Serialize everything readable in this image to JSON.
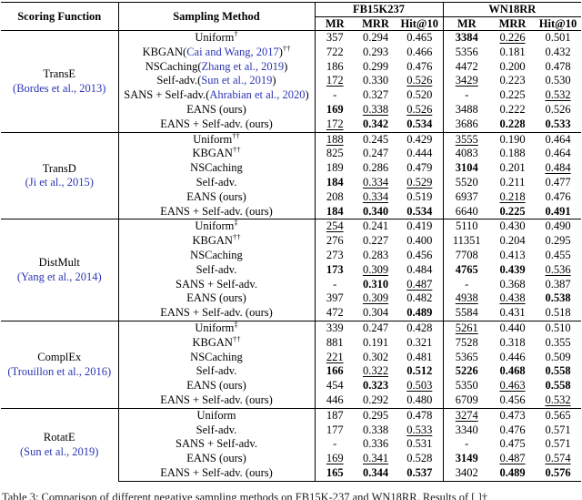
{
  "page": {
    "caption": "Table 3: Comparison of different negative sampling methods on FB15K-237 and WN18RR. Results of [ ]†"
  },
  "table": {
    "headers": {
      "scoring_function": "Scoring Function",
      "sampling_method": "Sampling Method",
      "group1": "FB15K237",
      "group2": "WN18RR",
      "metrics": [
        "MR",
        "MRR",
        "Hit@10"
      ]
    },
    "citation_color": "#2b35b4",
    "groups": [
      {
        "scoring": "TransE",
        "scoring_cite": "(Bordes et al., 2013)",
        "rows": [
          {
            "method": "Uniform",
            "sup": "†",
            "cells": [
              {
                "v": "357"
              },
              {
                "v": "0.294"
              },
              {
                "v": "0.465"
              },
              {
                "v": "3384",
                "s": "b"
              },
              {
                "v": "0.226",
                "s": "u"
              },
              {
                "v": "0.501"
              }
            ]
          },
          {
            "method": "KBGAN",
            "cite": "Cai and Wang, 2017",
            "sup": "††",
            "cells": [
              {
                "v": "722"
              },
              {
                "v": "0.293"
              },
              {
                "v": "0.466"
              },
              {
                "v": "5356"
              },
              {
                "v": "0.181"
              },
              {
                "v": "0.432"
              }
            ]
          },
          {
            "method": "NSCaching",
            "cite": "Zhang et al., 2019",
            "cells": [
              {
                "v": "186"
              },
              {
                "v": "0.299"
              },
              {
                "v": "0.476"
              },
              {
                "v": "4472"
              },
              {
                "v": "0.200"
              },
              {
                "v": "0.478"
              }
            ]
          },
          {
            "method": "Self-adv.",
            "cite": "Sun et al., 2019",
            "cells": [
              {
                "v": "172",
                "s": "u"
              },
              {
                "v": "0.330"
              },
              {
                "v": "0.526",
                "s": "u"
              },
              {
                "v": "3429",
                "s": "u"
              },
              {
                "v": "0.223"
              },
              {
                "v": "0.530"
              }
            ]
          },
          {
            "method": "SANS + Self-adv.",
            "cite": "Ahrabian et al., 2020",
            "cells": [
              {
                "v": "-"
              },
              {
                "v": "0.327"
              },
              {
                "v": "0.520"
              },
              {
                "v": "-"
              },
              {
                "v": "0.225"
              },
              {
                "v": "0.532",
                "s": "u"
              }
            ]
          },
          {
            "method": "EANS (ours)",
            "cells": [
              {
                "v": "169",
                "s": "b"
              },
              {
                "v": "0.338",
                "s": "u"
              },
              {
                "v": "0.526",
                "s": "u"
              },
              {
                "v": "3488"
              },
              {
                "v": "0.222"
              },
              {
                "v": "0.526"
              }
            ]
          },
          {
            "method": "EANS + Self-adv. (ours)",
            "cells": [
              {
                "v": "172",
                "s": "u"
              },
              {
                "v": "0.342",
                "s": "b"
              },
              {
                "v": "0.534",
                "s": "b"
              },
              {
                "v": "3686"
              },
              {
                "v": "0.228",
                "s": "b"
              },
              {
                "v": "0.533",
                "s": "b"
              }
            ]
          }
        ]
      },
      {
        "scoring": "TransD",
        "scoring_cite": "(Ji et al., 2015)",
        "rows": [
          {
            "method": "Uniform",
            "sup": "††",
            "cells": [
              {
                "v": "188",
                "s": "u"
              },
              {
                "v": "0.245"
              },
              {
                "v": "0.429"
              },
              {
                "v": "3555",
                "s": "u"
              },
              {
                "v": "0.190"
              },
              {
                "v": "0.464"
              }
            ]
          },
          {
            "method": "KBGAN",
            "sup": "††",
            "cells": [
              {
                "v": "825"
              },
              {
                "v": "0.247"
              },
              {
                "v": "0.444"
              },
              {
                "v": "4083"
              },
              {
                "v": "0.188"
              },
              {
                "v": "0.464"
              }
            ]
          },
          {
            "method": "NSCaching",
            "cells": [
              {
                "v": "189"
              },
              {
                "v": "0.286"
              },
              {
                "v": "0.479"
              },
              {
                "v": "3104",
                "s": "b"
              },
              {
                "v": "0.201"
              },
              {
                "v": "0.484",
                "s": "u"
              }
            ]
          },
          {
            "method": "Self-adv.",
            "cells": [
              {
                "v": "184",
                "s": "b"
              },
              {
                "v": "0.334",
                "s": "u"
              },
              {
                "v": "0.529",
                "s": "u"
              },
              {
                "v": "5520"
              },
              {
                "v": "0.211"
              },
              {
                "v": "0.477"
              }
            ]
          },
          {
            "method": "EANS (ours)",
            "cells": [
              {
                "v": "208"
              },
              {
                "v": "0.334",
                "s": "u"
              },
              {
                "v": "0.519"
              },
              {
                "v": "6937"
              },
              {
                "v": "0.218",
                "s": "u"
              },
              {
                "v": "0.476"
              }
            ]
          },
          {
            "method": "EANS + Self-adv. (ours)",
            "cells": [
              {
                "v": "184",
                "s": "b"
              },
              {
                "v": "0.340",
                "s": "b"
              },
              {
                "v": "0.534",
                "s": "b"
              },
              {
                "v": "6640"
              },
              {
                "v": "0.225",
                "s": "b"
              },
              {
                "v": "0.491",
                "s": "b"
              }
            ]
          }
        ]
      },
      {
        "scoring": "DistMult",
        "scoring_cite": "(Yang et al., 2014)",
        "rows": [
          {
            "method": "Uniform",
            "sup": "‡",
            "cells": [
              {
                "v": "254",
                "s": "u"
              },
              {
                "v": "0.241"
              },
              {
                "v": "0.419"
              },
              {
                "v": "5110"
              },
              {
                "v": "0.430"
              },
              {
                "v": "0.490"
              }
            ]
          },
          {
            "method": "KBGAN",
            "sup": "††",
            "cells": [
              {
                "v": "276"
              },
              {
                "v": "0.227"
              },
              {
                "v": "0.400"
              },
              {
                "v": "11351"
              },
              {
                "v": "0.204"
              },
              {
                "v": "0.295"
              }
            ]
          },
          {
            "method": "NSCaching",
            "cells": [
              {
                "v": "273"
              },
              {
                "v": "0.283"
              },
              {
                "v": "0.456"
              },
              {
                "v": "7708"
              },
              {
                "v": "0.413"
              },
              {
                "v": "0.455"
              }
            ]
          },
          {
            "method": "Self-adv.",
            "cells": [
              {
                "v": "173",
                "s": "b"
              },
              {
                "v": "0.309",
                "s": "u"
              },
              {
                "v": "0.484"
              },
              {
                "v": "4765",
                "s": "b"
              },
              {
                "v": "0.439",
                "s": "b"
              },
              {
                "v": "0.536",
                "s": "u"
              }
            ]
          },
          {
            "method": "SANS + Self-adv.",
            "cells": [
              {
                "v": "-"
              },
              {
                "v": "0.310",
                "s": "b"
              },
              {
                "v": "0.487",
                "s": "u"
              },
              {
                "v": "-"
              },
              {
                "v": "0.368"
              },
              {
                "v": "0.387"
              }
            ]
          },
          {
            "method": "EANS (ours)",
            "cells": [
              {
                "v": "397"
              },
              {
                "v": "0.309",
                "s": "u"
              },
              {
                "v": "0.482"
              },
              {
                "v": "4938",
                "s": "u"
              },
              {
                "v": "0.438",
                "s": "u"
              },
              {
                "v": "0.538",
                "s": "b"
              }
            ]
          },
          {
            "method": "EANS + Self-adv. (ours)",
            "cells": [
              {
                "v": "472"
              },
              {
                "v": "0.304"
              },
              {
                "v": "0.489",
                "s": "b"
              },
              {
                "v": "5584"
              },
              {
                "v": "0.431"
              },
              {
                "v": "0.518"
              }
            ]
          }
        ]
      },
      {
        "scoring": "ComplEx",
        "scoring_cite": "(Trouillon et al., 2016)",
        "rows": [
          {
            "method": "Uniform",
            "sup": "‡",
            "cells": [
              {
                "v": "339"
              },
              {
                "v": "0.247"
              },
              {
                "v": "0.428"
              },
              {
                "v": "5261",
                "s": "u"
              },
              {
                "v": "0.440"
              },
              {
                "v": "0.510"
              }
            ]
          },
          {
            "method": "KBGAN",
            "sup": "††",
            "cells": [
              {
                "v": "881"
              },
              {
                "v": "0.191"
              },
              {
                "v": "0.321"
              },
              {
                "v": "7528"
              },
              {
                "v": "0.318"
              },
              {
                "v": "0.355"
              }
            ]
          },
          {
            "method": "NSCaching",
            "cells": [
              {
                "v": "221",
                "s": "u"
              },
              {
                "v": "0.302"
              },
              {
                "v": "0.481"
              },
              {
                "v": "5365"
              },
              {
                "v": "0.446"
              },
              {
                "v": "0.509"
              }
            ]
          },
          {
            "method": "Self-adv.",
            "cells": [
              {
                "v": "166",
                "s": "b"
              },
              {
                "v": "0.322",
                "s": "u"
              },
              {
                "v": "0.512",
                "s": "b"
              },
              {
                "v": "5226",
                "s": "b"
              },
              {
                "v": "0.468",
                "s": "b"
              },
              {
                "v": "0.558",
                "s": "b"
              }
            ]
          },
          {
            "method": "EANS (ours)",
            "cells": [
              {
                "v": "454"
              },
              {
                "v": "0.323",
                "s": "b"
              },
              {
                "v": "0.503",
                "s": "u"
              },
              {
                "v": "5350"
              },
              {
                "v": "0.463",
                "s": "u"
              },
              {
                "v": "0.558",
                "s": "b"
              }
            ]
          },
          {
            "method": "EANS + Self-adv. (ours)",
            "cells": [
              {
                "v": "446"
              },
              {
                "v": "0.292"
              },
              {
                "v": "0.480"
              },
              {
                "v": "6709"
              },
              {
                "v": "0.456"
              },
              {
                "v": "0.532",
                "s": "u"
              }
            ]
          }
        ]
      },
      {
        "scoring": "RotatE",
        "scoring_cite": "(Sun et al., 2019)",
        "rows": [
          {
            "method": "Uniform",
            "cells": [
              {
                "v": "187"
              },
              {
                "v": "0.295"
              },
              {
                "v": "0.478"
              },
              {
                "v": "3274",
                "s": "u"
              },
              {
                "v": "0.473"
              },
              {
                "v": "0.565"
              }
            ]
          },
          {
            "method": "Self-adv.",
            "cells": [
              {
                "v": "177"
              },
              {
                "v": "0.338"
              },
              {
                "v": "0.533",
                "s": "u"
              },
              {
                "v": "3340"
              },
              {
                "v": "0.476"
              },
              {
                "v": "0.571"
              }
            ]
          },
          {
            "method": "SANS + Self-adv.",
            "cells": [
              {
                "v": "-"
              },
              {
                "v": "0.336"
              },
              {
                "v": "0.531"
              },
              {
                "v": "-"
              },
              {
                "v": "0.475"
              },
              {
                "v": "0.571"
              }
            ]
          },
          {
            "method": "EANS (ours)",
            "cells": [
              {
                "v": "169",
                "s": "u"
              },
              {
                "v": "0.341",
                "s": "u"
              },
              {
                "v": "0.528"
              },
              {
                "v": "3149",
                "s": "b"
              },
              {
                "v": "0.487",
                "s": "u"
              },
              {
                "v": "0.574",
                "s": "u"
              }
            ]
          },
          {
            "method": "EANS + Self-adv. (ours)",
            "cells": [
              {
                "v": "165",
                "s": "b"
              },
              {
                "v": "0.344",
                "s": "b"
              },
              {
                "v": "0.537",
                "s": "b"
              },
              {
                "v": "3402"
              },
              {
                "v": "0.489",
                "s": "b"
              },
              {
                "v": "0.576",
                "s": "b"
              }
            ]
          }
        ]
      }
    ]
  }
}
